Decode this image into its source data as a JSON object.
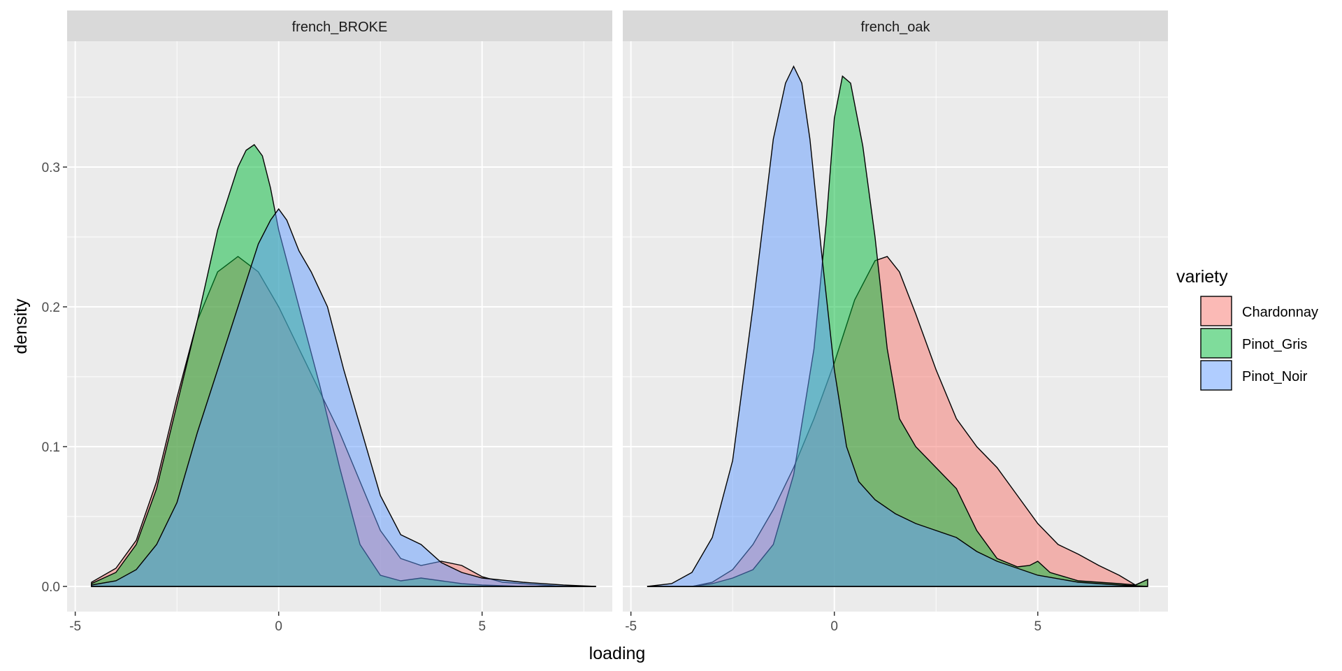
{
  "chart_data": {
    "type": "area",
    "chart_kind": "density (faceted)",
    "xlabel": "loading",
    "ylabel": "density",
    "xlim": [
      -5.2,
      8.2
    ],
    "ylim": [
      -0.018,
      0.39
    ],
    "x_ticks": [
      -5,
      0,
      5
    ],
    "y_ticks": [
      0.0,
      0.1,
      0.2,
      0.3
    ],
    "y_tick_labels": [
      "0.0",
      "0.1",
      "0.2",
      "0.3"
    ],
    "grid": true,
    "legend": {
      "title": "variety",
      "position": "right",
      "entries": [
        "Chardonnay",
        "Pinot_Gris",
        "Pinot_Noir"
      ]
    },
    "colors": {
      "Chardonnay": "#F8766D",
      "Pinot_Gris": "#00BA38",
      "Pinot_Noir": "#619CFF"
    },
    "facets": [
      {
        "strip": "french_BROKE",
        "series": [
          {
            "name": "Chardonnay",
            "x": [
              -4.6,
              -4,
              -3.5,
              -3,
              -2.5,
              -2,
              -1.5,
              -1,
              -0.5,
              0,
              0.5,
              1,
              1.5,
              2,
              2.5,
              3,
              3.5,
              4,
              4.5,
              5,
              5.5,
              6,
              6.5,
              7,
              7.8
            ],
            "y": [
              0.003,
              0.013,
              0.033,
              0.075,
              0.135,
              0.19,
              0.225,
              0.236,
              0.225,
              0.2,
              0.17,
              0.14,
              0.11,
              0.075,
              0.04,
              0.02,
              0.015,
              0.018,
              0.015,
              0.007,
              0.003,
              0.002,
              0.001,
              0.0,
              0.0
            ]
          },
          {
            "name": "Pinot_Gris",
            "x": [
              -4.6,
              -4,
              -3.5,
              -3,
              -2.5,
              -2,
              -1.5,
              -1,
              -0.8,
              -0.6,
              -0.4,
              -0.2,
              0,
              0.5,
              1,
              1.5,
              2,
              2.5,
              3,
              3.5,
              4,
              4.5,
              5,
              6,
              7,
              7.8
            ],
            "y": [
              0.002,
              0.01,
              0.03,
              0.07,
              0.13,
              0.19,
              0.255,
              0.3,
              0.312,
              0.316,
              0.308,
              0.285,
              0.255,
              0.2,
              0.145,
              0.085,
              0.03,
              0.008,
              0.004,
              0.006,
              0.004,
              0.002,
              0.001,
              0.0,
              0.0,
              0.0
            ]
          },
          {
            "name": "Pinot_Noir",
            "x": [
              -4.6,
              -4,
              -3.5,
              -3,
              -2.5,
              -2,
              -1.5,
              -1,
              -0.5,
              -0.2,
              0,
              0.2,
              0.5,
              0.8,
              1.2,
              1.6,
              2,
              2.5,
              3,
              3.5,
              4,
              4.5,
              5,
              6,
              7,
              7.8
            ],
            "y": [
              0.001,
              0.004,
              0.012,
              0.03,
              0.06,
              0.11,
              0.155,
              0.2,
              0.245,
              0.262,
              0.27,
              0.262,
              0.24,
              0.225,
              0.2,
              0.155,
              0.115,
              0.065,
              0.037,
              0.03,
              0.017,
              0.01,
              0.006,
              0.003,
              0.001,
              0.0
            ]
          }
        ]
      },
      {
        "strip": "french_oak",
        "series": [
          {
            "name": "Chardonnay",
            "x": [
              -4.6,
              -3.5,
              -3,
              -2.5,
              -2,
              -1.5,
              -1,
              -0.5,
              0,
              0.5,
              1,
              1.3,
              1.6,
              2,
              2.5,
              3,
              3.5,
              4,
              4.5,
              5,
              5.5,
              6,
              6.5,
              7,
              7.4,
              7.7
            ],
            "y": [
              0.0,
              0.0,
              0.003,
              0.012,
              0.03,
              0.055,
              0.085,
              0.12,
              0.16,
              0.205,
              0.233,
              0.236,
              0.225,
              0.195,
              0.155,
              0.12,
              0.1,
              0.085,
              0.065,
              0.045,
              0.03,
              0.023,
              0.015,
              0.008,
              0.001,
              0.005
            ]
          },
          {
            "name": "Pinot_Gris",
            "x": [
              -4.6,
              -3.5,
              -3,
              -2.5,
              -2,
              -1.5,
              -1,
              -0.5,
              -0.2,
              0,
              0.2,
              0.4,
              0.7,
              1,
              1.3,
              1.6,
              2,
              2.5,
              3,
              3.5,
              4,
              4.5,
              4.8,
              5,
              5.3,
              6,
              7,
              7.4,
              7.7
            ],
            "y": [
              0.0,
              0.0,
              0.002,
              0.006,
              0.012,
              0.03,
              0.08,
              0.17,
              0.26,
              0.335,
              0.365,
              0.36,
              0.315,
              0.25,
              0.17,
              0.12,
              0.1,
              0.085,
              0.07,
              0.04,
              0.02,
              0.014,
              0.015,
              0.018,
              0.01,
              0.004,
              0.002,
              0.001,
              0.005
            ]
          },
          {
            "name": "Pinot_Noir",
            "x": [
              -4.6,
              -4,
              -3.5,
              -3,
              -2.5,
              -2,
              -1.5,
              -1.2,
              -1,
              -0.8,
              -0.6,
              -0.3,
              0,
              0.3,
              0.6,
              1,
              1.5,
              2,
              2.5,
              3,
              3.5,
              4,
              4.5,
              5,
              6,
              7,
              7.7
            ],
            "y": [
              0.0,
              0.002,
              0.01,
              0.035,
              0.09,
              0.2,
              0.32,
              0.36,
              0.372,
              0.36,
              0.32,
              0.235,
              0.155,
              0.1,
              0.075,
              0.062,
              0.052,
              0.045,
              0.04,
              0.035,
              0.025,
              0.018,
              0.013,
              0.008,
              0.003,
              0.001,
              0.0
            ]
          }
        ]
      }
    ]
  }
}
